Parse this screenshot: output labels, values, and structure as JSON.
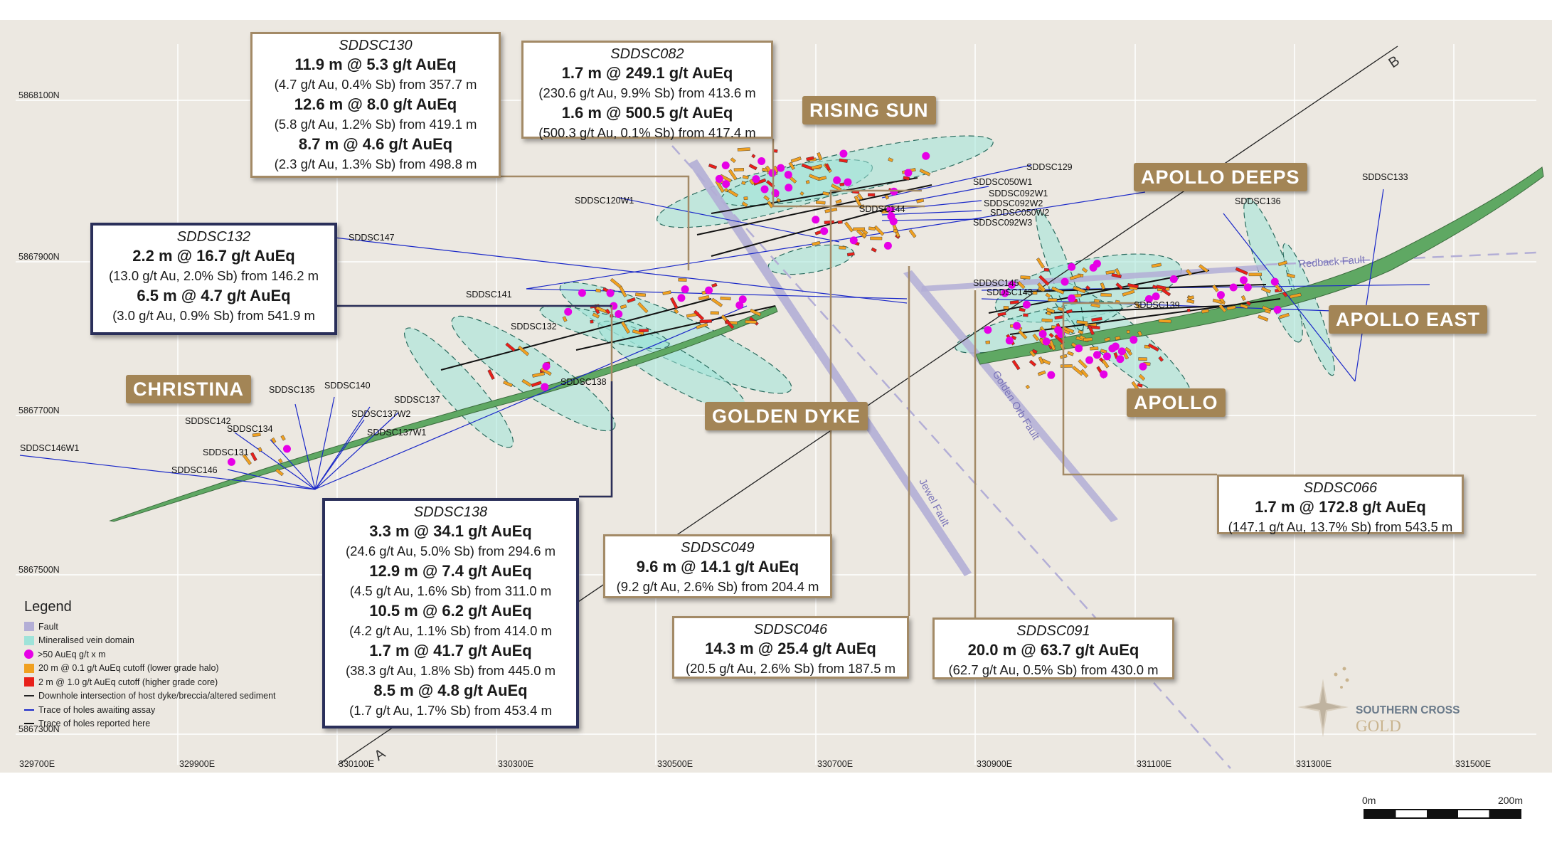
{
  "map": {
    "grid_eastings": [
      "329700E",
      "329900E",
      "330100E",
      "330300E",
      "330500E",
      "330700E",
      "330900E",
      "331100E",
      "331300E",
      "331500E"
    ],
    "grid_northings": [
      "5868100N",
      "5867900N",
      "5867700N",
      "5867500N",
      "5867300N"
    ],
    "section_labels": {
      "start": "A",
      "end": "B"
    },
    "fault_labels": [
      "Redback Fault",
      "Golden Orb Fault",
      "Jewel Fault"
    ],
    "hole_labels": [
      "SDDSC129",
      "SDDSC050W1",
      "SDDSC092W1",
      "SDDSC092W2",
      "SDDSC050W2",
      "SDDSC092W3",
      "SDDSC144",
      "SDDSC120W1",
      "SDDSC147",
      "SDDSC141",
      "SDDSC132",
      "SDDSC138",
      "SDDSC136",
      "SDDSC133",
      "SDDSC145",
      "SDDSC143",
      "SDDSC139",
      "SDDSC135",
      "SDDSC140",
      "SDDSC137",
      "SDDSC137W2",
      "SDDSC137W1",
      "SDDSC142",
      "SDDSC134",
      "SDDSC131",
      "SDDSC146W1",
      "SDDSC146"
    ],
    "regions": [
      "RISING SUN",
      "APOLLO DEEPS",
      "APOLLO EAST",
      "APOLLO",
      "GOLDEN DYKE",
      "CHRISTINA"
    ],
    "colors": {
      "background": "#ece8e1",
      "grid": "#ffffff",
      "fault": "#b3aed6",
      "vein_domain": "#9fe3d9",
      "dyke": "#5fa863",
      "high_grade_dot": "#e600e6",
      "halo": "#f0a020",
      "core": "#e8201a",
      "hole_awaiting": "#1a28c8",
      "hole_reported": "#222222",
      "callout_border": "#a38a66",
      "callout_border_navy": "#2a2f5a",
      "region_label": "#a38556"
    }
  },
  "callouts": [
    {
      "id": "SDDSC130",
      "lines": [
        {
          "interval": "11.9 m @ 5.3 g/t AuEq",
          "detail": "(4.7 g/t Au, 0.4% Sb) from 357.7 m"
        },
        {
          "interval": "12.6 m @ 8.0 g/t AuEq",
          "detail": "(5.8 g/t Au, 1.2% Sb) from 419.1 m"
        },
        {
          "interval": "8.7 m @ 4.6 g/t AuEq",
          "detail": "(2.3 g/t Au, 1.3% Sb) from 498.8 m"
        }
      ]
    },
    {
      "id": "SDDSC082",
      "lines": [
        {
          "interval": "1.7 m @ 249.1 g/t AuEq",
          "detail": "(230.6 g/t Au, 9.9% Sb) from 413.6 m"
        },
        {
          "interval": "1.6 m @ 500.5 g/t AuEq",
          "detail": "(500.3 g/t Au, 0.1% Sb) from 417.4 m"
        }
      ]
    },
    {
      "id": "SDDSC132",
      "lines": [
        {
          "interval": "2.2 m @ 16.7 g/t AuEq",
          "detail": "(13.0 g/t Au, 2.0% Sb) from 146.2 m"
        },
        {
          "interval": "6.5 m @ 4.7 g/t AuEq",
          "detail": "(3.0 g/t Au, 0.9% Sb) from 541.9 m"
        }
      ]
    },
    {
      "id": "SDDSC138",
      "lines": [
        {
          "interval": "3.3 m @ 34.1 g/t AuEq",
          "detail": "(24.6 g/t Au, 5.0% Sb) from 294.6 m"
        },
        {
          "interval": "12.9 m @ 7.4 g/t AuEq",
          "detail": "(4.5 g/t Au, 1.6% Sb) from 311.0 m"
        },
        {
          "interval": "10.5 m @ 6.2 g/t AuEq",
          "detail": "(4.2 g/t Au, 1.1% Sb) from 414.0 m"
        },
        {
          "interval": "1.7 m @ 41.7 g/t AuEq",
          "detail": "(38.3 g/t Au, 1.8% Sb) from 445.0 m"
        },
        {
          "interval": "8.5 m @ 4.8 g/t AuEq",
          "detail": "(1.7 g/t Au, 1.7% Sb) from 453.4 m"
        }
      ]
    },
    {
      "id": "SDDSC049",
      "lines": [
        {
          "interval": "9.6 m @ 14.1 g/t AuEq",
          "detail": "(9.2 g/t Au, 2.6% Sb) from 204.4 m"
        }
      ]
    },
    {
      "id": "SDDSC046",
      "lines": [
        {
          "interval": "14.3 m @ 25.4 g/t AuEq",
          "detail": "(20.5 g/t Au, 2.6% Sb) from 187.5 m"
        }
      ]
    },
    {
      "id": "SDDSC091",
      "lines": [
        {
          "interval": "20.0 m @ 63.7 g/t AuEq",
          "detail": "(62.7 g/t Au, 0.5% Sb) from 430.0 m"
        }
      ]
    },
    {
      "id": "SDDSC066",
      "lines": [
        {
          "interval": "1.7 m @ 172.8 g/t AuEq",
          "detail": "(147.1 g/t Au, 13.7% Sb) from 543.5 m"
        }
      ]
    }
  ],
  "legend": {
    "title": "Legend",
    "items": [
      {
        "label": "Fault",
        "swatch": "fault"
      },
      {
        "label": "Mineralised vein domain",
        "swatch": "vein"
      },
      {
        "label": ">50 AuEq g/t x m",
        "swatch": "dot"
      },
      {
        "label": "20 m @ 0.1 g/t AuEq cutoff (lower grade halo)",
        "swatch": "halo"
      },
      {
        "label": "2 m @ 1.0 g/t AuEq cutoff (higher grade core)",
        "swatch": "core"
      },
      {
        "label": "Downhole intersection of host dyke/breccia/altered sediment",
        "swatch": "line-dark"
      },
      {
        "label": "Trace of holes awaiting assay",
        "swatch": "line-blue"
      },
      {
        "label": "Trace of holes reported here",
        "swatch": "line-black"
      }
    ]
  },
  "logo": {
    "line1": "SOUTHERN CROSS",
    "line2": "GOLD"
  },
  "scale_bar": {
    "start": "0m",
    "end": "200m"
  }
}
